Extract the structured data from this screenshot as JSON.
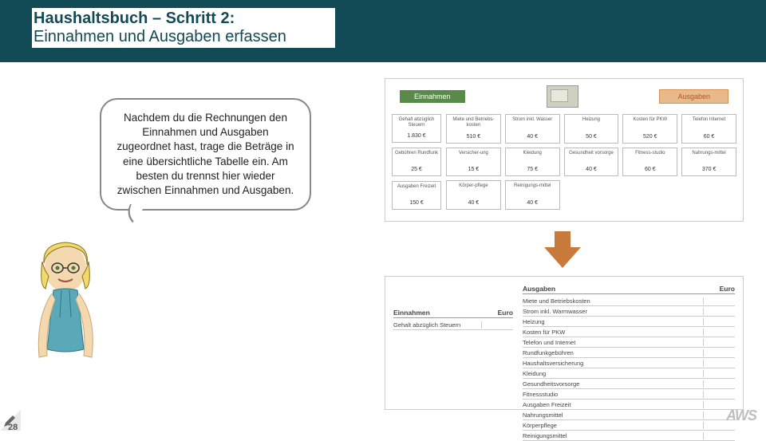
{
  "header": {
    "title_line1": "Haushaltsbuch – Schritt 2:",
    "title_line2": "Einnahmen und Ausgaben erfassen"
  },
  "bubble_text": "Nachdem du die Rechnungen den Einnahmen und Ausgaben zugeordnet hast, trage die Beträge in eine übersichtliche Tabelle ein. Am besten du trennst hier wieder zwischen Einnahmen und Ausgaben.",
  "categories": {
    "income_label": "Einnahmen",
    "expense_label": "Ausgaben"
  },
  "income_cards": [
    {
      "label": "Gehalt abzüglich Steuern",
      "value": "1.830 €"
    },
    {
      "label": "Gebühren Rundfunk",
      "value": "25 €"
    },
    {
      "label": "Ausgaben Freizeit",
      "value": "150 €"
    }
  ],
  "expense_cards": [
    {
      "label": "Miete und Betriebs-kosten",
      "value": "510 €"
    },
    {
      "label": "Strom inkl. Wasser",
      "value": "40 €"
    },
    {
      "label": "Heizung",
      "value": "50 €"
    },
    {
      "label": "Kosten für PKW",
      "value": "520 €"
    },
    {
      "label": "Telefon Internet",
      "value": "60 €"
    },
    {
      "label": "Versicher-ung",
      "value": "15 €"
    },
    {
      "label": "Kleidung",
      "value": "75 €"
    },
    {
      "label": "Gesundheit vorsorge",
      "value": "40 €"
    },
    {
      "label": "Fitness-studio",
      "value": "60 €"
    },
    {
      "label": "Nahrungs-mittel",
      "value": "370 €"
    },
    {
      "label": "Körper-pflege",
      "value": "40 €"
    },
    {
      "label": "Reinigungs-mittel",
      "value": "40 €"
    }
  ],
  "table_left": {
    "title": "Einnahmen",
    "euro": "Euro",
    "rows": [
      "Gehalt abzüglich Steuern"
    ]
  },
  "table_right": {
    "title": "Ausgaben",
    "euro": "Euro",
    "rows": [
      "Miete und Betriebskosten",
      "Strom inkl. Warmwasser",
      "Heizung",
      "Kosten für PKW",
      "Telefon und Internet",
      "Rundfunkgebühren",
      "Haushaltsversicherung",
      "Kleidung",
      "Gesundheitsvorsorge",
      "Fitnessstudio",
      "Ausgaben Freizeit",
      "Nahrungsmittel",
      "Körperpflege",
      "Reinigungsmittel"
    ]
  },
  "page_number": "28",
  "logo_text": "AWS",
  "colors": {
    "header_bg": "#124a56",
    "income_bg": "#5a8a4a",
    "expense_bg": "#e8b98a",
    "arrow": "#c77a3a"
  }
}
